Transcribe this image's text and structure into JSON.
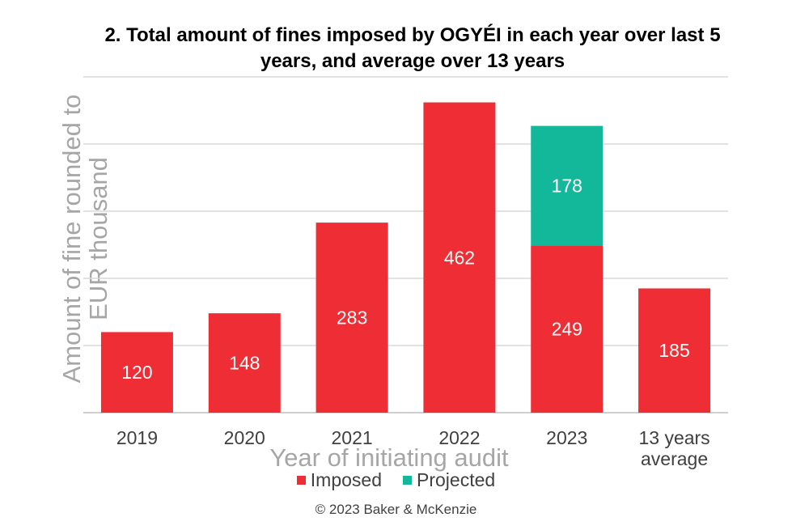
{
  "chart_data": {
    "type": "bar",
    "stacked": true,
    "title": "2. Total amount of fines imposed by OGYÉI in each year over last 5 years, and average over 13 years",
    "xlabel": "Year of initiating audit",
    "ylabel": "Amount of fine rounded to EUR thousand",
    "categories": [
      "2019",
      "2020",
      "2021",
      "2022",
      "2023",
      "13 years average"
    ],
    "series": [
      {
        "name": "Imposed",
        "color": "#ee2d35",
        "values": [
          120,
          148,
          283,
          462,
          249,
          185
        ]
      },
      {
        "name": "Projected",
        "color": "#13b89a",
        "values": [
          0,
          0,
          0,
          0,
          178,
          0
        ]
      }
    ],
    "ylim": [
      0,
      500
    ],
    "grid": true,
    "legend_position": "bottom"
  },
  "copyright": "© 2023 Baker & McKenzie"
}
